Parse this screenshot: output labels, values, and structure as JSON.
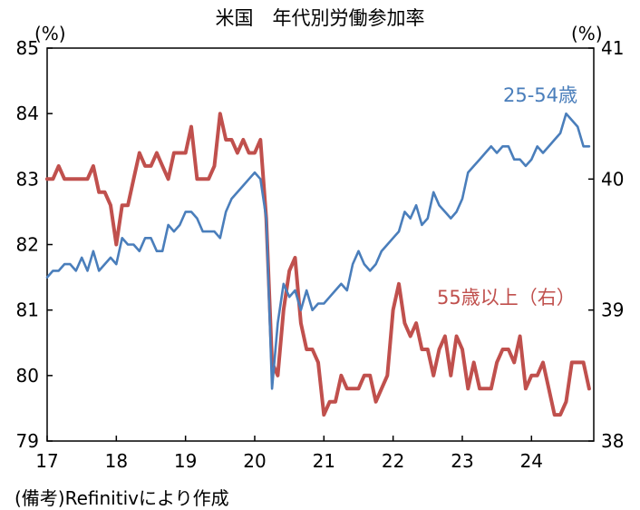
{
  "chart_data": {
    "type": "line",
    "title": "米国　年代別労働参加率",
    "left_unit": "(%)",
    "right_unit": "(%)",
    "x_range": [
      2017,
      2024.9
    ],
    "x_ticks": [
      "17",
      "18",
      "19",
      "20",
      "21",
      "22",
      "23",
      "24"
    ],
    "left_ylim": [
      79,
      85
    ],
    "left_ticks": [
      "79",
      "80",
      "81",
      "82",
      "83",
      "84",
      "85"
    ],
    "right_ylim": [
      38,
      41
    ],
    "right_ticks": [
      "38",
      "39",
      "40",
      "41"
    ],
    "colors": {
      "blue": "#4a7ebb",
      "red": "#c0504d"
    },
    "series": [
      {
        "name": "25-54歳",
        "axis": "left",
        "color": "#4a7ebb",
        "x_start": 2017.0,
        "x_step": 0.0833333,
        "values": [
          81.5,
          81.6,
          81.6,
          81.7,
          81.7,
          81.6,
          81.8,
          81.6,
          81.9,
          81.6,
          81.7,
          81.8,
          81.7,
          82.1,
          82.0,
          82.0,
          81.9,
          82.1,
          82.1,
          81.9,
          81.9,
          82.3,
          82.2,
          82.3,
          82.5,
          82.5,
          82.4,
          82.2,
          82.2,
          82.2,
          82.1,
          82.5,
          82.7,
          82.8,
          82.9,
          83.0,
          83.1,
          83.0,
          82.4,
          79.8,
          80.8,
          81.4,
          81.2,
          81.3,
          81.0,
          81.3,
          81.0,
          81.1,
          81.1,
          81.2,
          81.3,
          81.4,
          81.3,
          81.7,
          81.9,
          81.7,
          81.6,
          81.7,
          81.9,
          82.0,
          82.1,
          82.2,
          82.5,
          82.4,
          82.6,
          82.3,
          82.4,
          82.8,
          82.6,
          82.5,
          82.4,
          82.5,
          82.7,
          83.1,
          83.2,
          83.3,
          83.4,
          83.5,
          83.4,
          83.5,
          83.5,
          83.3,
          83.3,
          83.2,
          83.3,
          83.5,
          83.4,
          83.5,
          83.6,
          83.7,
          84.0,
          83.9,
          83.8,
          83.5,
          83.5
        ]
      },
      {
        "name": "55歳以上（右）",
        "axis": "right",
        "color": "#c0504d",
        "x_start": 2017.0,
        "x_step": 0.0833333,
        "values": [
          40.0,
          40.0,
          40.1,
          40.0,
          40.0,
          40.0,
          40.0,
          40.0,
          40.1,
          39.9,
          39.9,
          39.8,
          39.5,
          39.8,
          39.8,
          40.0,
          40.2,
          40.1,
          40.1,
          40.2,
          40.1,
          40.0,
          40.2,
          40.2,
          40.2,
          40.4,
          40.0,
          40.0,
          40.0,
          40.1,
          40.5,
          40.3,
          40.3,
          40.2,
          40.3,
          40.2,
          40.2,
          40.3,
          39.7,
          38.6,
          38.5,
          39.0,
          39.3,
          39.4,
          38.9,
          38.7,
          38.7,
          38.6,
          38.2,
          38.3,
          38.3,
          38.5,
          38.4,
          38.4,
          38.4,
          38.5,
          38.5,
          38.3,
          38.4,
          38.5,
          39.0,
          39.2,
          38.9,
          38.8,
          38.9,
          38.7,
          38.7,
          38.5,
          38.7,
          38.8,
          38.5,
          38.8,
          38.7,
          38.4,
          38.6,
          38.4,
          38.4,
          38.4,
          38.6,
          38.7,
          38.7,
          38.6,
          38.8,
          38.4,
          38.5,
          38.5,
          38.6,
          38.4,
          38.2,
          38.2,
          38.3,
          38.6,
          38.6,
          38.6,
          38.4
        ]
      }
    ]
  },
  "note": "(備考)Refinitivにより作成"
}
